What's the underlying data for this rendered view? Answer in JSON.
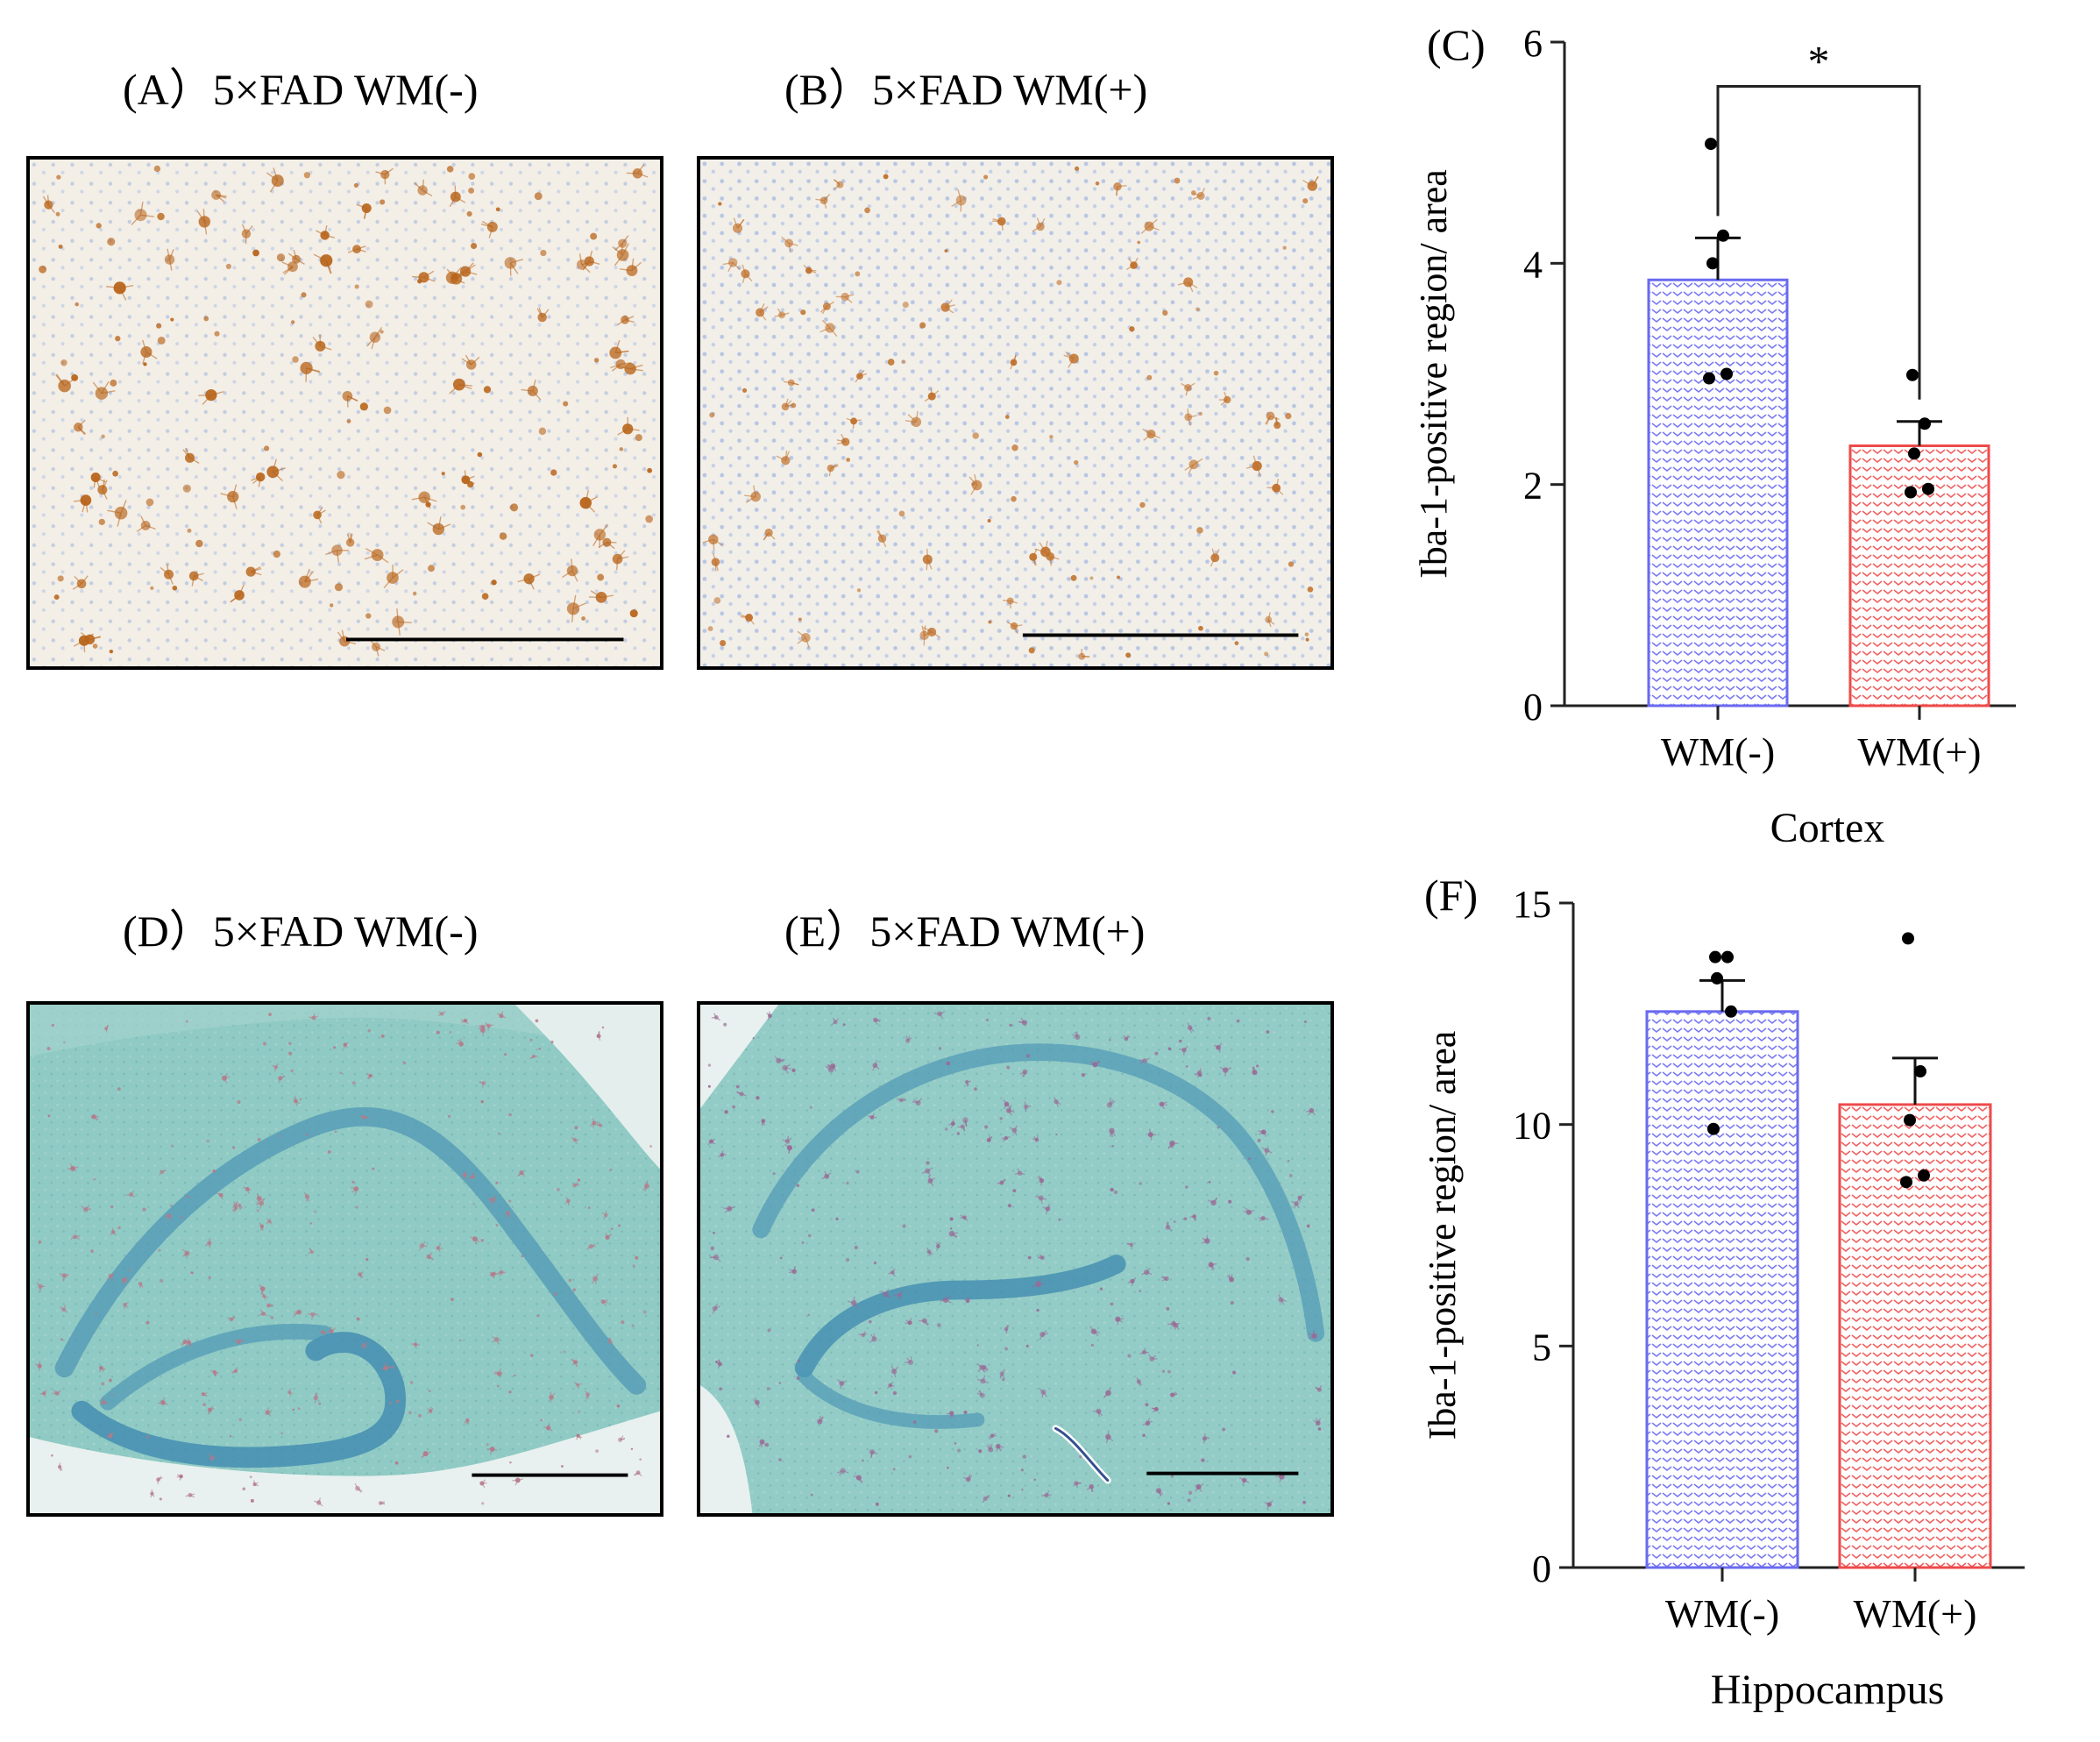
{
  "panels": {
    "A": "(A）5×FAD WM(-)",
    "B": "(B）5×FAD WM(+)",
    "C": "(C)",
    "D": "(D）5×FAD WM(-)",
    "E": "(E）5×FAD WM(+)",
    "F": "(F)"
  },
  "colors": {
    "wm_minus": "#6a6af0",
    "wm_plus": "#ee4a4a",
    "ihc_brown": "#b8641a",
    "stain_teal": "#8ec9c4"
  },
  "chart_data": [
    {
      "type": "bar",
      "panel": "C",
      "categories": [
        "WM(-)",
        "WM(+)"
      ],
      "values": [
        3.85,
        2.35
      ],
      "sem": [
        0.38,
        0.22
      ],
      "points": [
        [
          5.08,
          4.25,
          4.0,
          3.0,
          2.96
        ],
        [
          2.99,
          2.55,
          2.28,
          1.96,
          1.93
        ]
      ],
      "xlabel": "Cortex",
      "ylabel": "Iba-1-positive region/ area",
      "ylim": [
        0,
        6
      ],
      "yticks": [
        0,
        2,
        4,
        6
      ],
      "significance": "*",
      "grid": false
    },
    {
      "type": "bar",
      "panel": "F",
      "categories": [
        "WM(-)",
        "WM(+)"
      ],
      "values": [
        12.55,
        10.45
      ],
      "sem": [
        0.7,
        1.05
      ],
      "points": [
        [
          13.78,
          13.78,
          13.3,
          12.55,
          9.9
        ],
        [
          14.2,
          11.2,
          10.1,
          8.85,
          8.7
        ]
      ],
      "xlabel": "Hippocampus",
      "ylabel": "Iba-1-positive region/ area",
      "ylim": [
        0,
        15
      ],
      "yticks": [
        0,
        5,
        10,
        15
      ],
      "grid": false
    }
  ]
}
